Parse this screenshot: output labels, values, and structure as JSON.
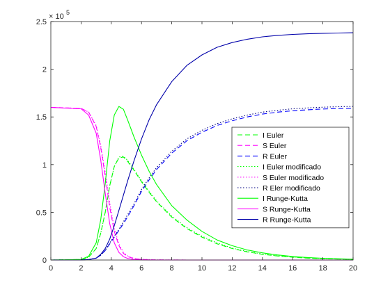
{
  "chart_data": {
    "type": "line",
    "exponent_label": "5",
    "exponent_base": "× 10",
    "xlim": [
      0,
      20
    ],
    "ylim": [
      0,
      250000
    ],
    "xticks": [
      0,
      2,
      4,
      6,
      8,
      10,
      12,
      14,
      16,
      18,
      20
    ],
    "yticks": [
      0,
      0.5,
      1,
      1.5,
      2,
      2.5
    ],
    "grid": false,
    "legend_position": "right",
    "x": [
      0,
      2,
      2.5,
      3,
      3.3,
      3.6,
      3.9,
      4.2,
      4.5,
      4.8,
      5.1,
      5.5,
      6,
      6.5,
      7,
      8,
      9,
      10,
      11,
      12,
      13,
      14,
      15,
      16,
      17,
      18,
      19,
      20
    ],
    "series": [
      {
        "name": "I Euler",
        "color": "#00ff00",
        "dash": "dashed",
        "values": [
          0,
          500,
          3000,
          12000,
          28000,
          50000,
          78000,
          98000,
          107000,
          108000,
          103000,
          94000,
          82000,
          71000,
          61000,
          45000,
          33000,
          24000,
          17000,
          12000,
          8500,
          6000,
          4200,
          2900,
          2000,
          1400,
          1000,
          700
        ]
      },
      {
        "name": "S Euler",
        "color": "#ff00ff",
        "dash": "dashed",
        "values": [
          160000,
          159000,
          155000,
          140000,
          118000,
          88000,
          55000,
          30000,
          15000,
          7000,
          3500,
          1500,
          600,
          300,
          150,
          50,
          20,
          0,
          0,
          0,
          0,
          0,
          0,
          0,
          0,
          0,
          0,
          0
        ]
      },
      {
        "name": "R Euler",
        "color": "#0000ff",
        "dash": "dashed",
        "values": [
          0,
          100,
          500,
          2000,
          5000,
          10000,
          17000,
          24000,
          31000,
          38000,
          46000,
          57000,
          72000,
          84000,
          95000,
          112000,
          125000,
          134000,
          141000,
          146000,
          150000,
          153000,
          155000,
          156500,
          157500,
          158300,
          158800,
          159200
        ]
      },
      {
        "name": "I Euler modificado",
        "color": "#00ff00",
        "dash": "dotted",
        "values": [
          0,
          500,
          3000,
          12000,
          28000,
          50000,
          78000,
          98000,
          108000,
          109000,
          104000,
          95000,
          83000,
          72000,
          62000,
          46000,
          34000,
          25000,
          18000,
          12500,
          9000,
          6300,
          4400,
          3100,
          2100,
          1500,
          1050,
          750
        ]
      },
      {
        "name": "S Euler modificado",
        "color": "#ff00ff",
        "dash": "dotted",
        "values": [
          160000,
          159000,
          155000,
          141000,
          120000,
          92000,
          60000,
          33000,
          17000,
          8000,
          4000,
          1700,
          700,
          350,
          170,
          60,
          20,
          0,
          0,
          0,
          0,
          0,
          0,
          0,
          0,
          0,
          0,
          0
        ]
      },
      {
        "name": "R Eler modificado",
        "color": "#000080",
        "dash": "dotted",
        "values": [
          0,
          100,
          500,
          2000,
          5000,
          10000,
          18000,
          25000,
          32000,
          40000,
          48000,
          59000,
          74000,
          86000,
          97000,
          114000,
          127000,
          136000,
          143000,
          148000,
          152000,
          155000,
          157000,
          158500,
          159500,
          160200,
          160700,
          161000
        ]
      },
      {
        "name": "I Runge-Kutta",
        "color": "#00ff00",
        "dash": "solid",
        "values": [
          0,
          500,
          4000,
          18000,
          42000,
          80000,
          125000,
          152000,
          161000,
          158000,
          146000,
          129000,
          110000,
          93000,
          79000,
          57000,
          42000,
          30000,
          21000,
          15000,
          10500,
          7500,
          5300,
          3700,
          2600,
          1800,
          1300,
          900
        ]
      },
      {
        "name": "S Runge-Kutta",
        "color": "#ff00ff",
        "dash": "solid",
        "values": [
          160000,
          158500,
          152000,
          133000,
          105000,
          70000,
          38000,
          18000,
          8000,
          3500,
          1500,
          500,
          200,
          80,
          30,
          10,
          0,
          0,
          0,
          0,
          0,
          0,
          0,
          0,
          0,
          0,
          0,
          0
        ]
      },
      {
        "name": "R Runge-Kutta",
        "color": "#0000aa",
        "dash": "solid",
        "values": [
          0,
          100,
          500,
          2000,
          6000,
          12000,
          22000,
          36000,
          52000,
          68000,
          84000,
          104000,
          127000,
          147000,
          163000,
          187000,
          204000,
          215000,
          223000,
          228000,
          231500,
          234000,
          235500,
          236500,
          237200,
          237700,
          238000,
          238300
        ]
      }
    ]
  }
}
